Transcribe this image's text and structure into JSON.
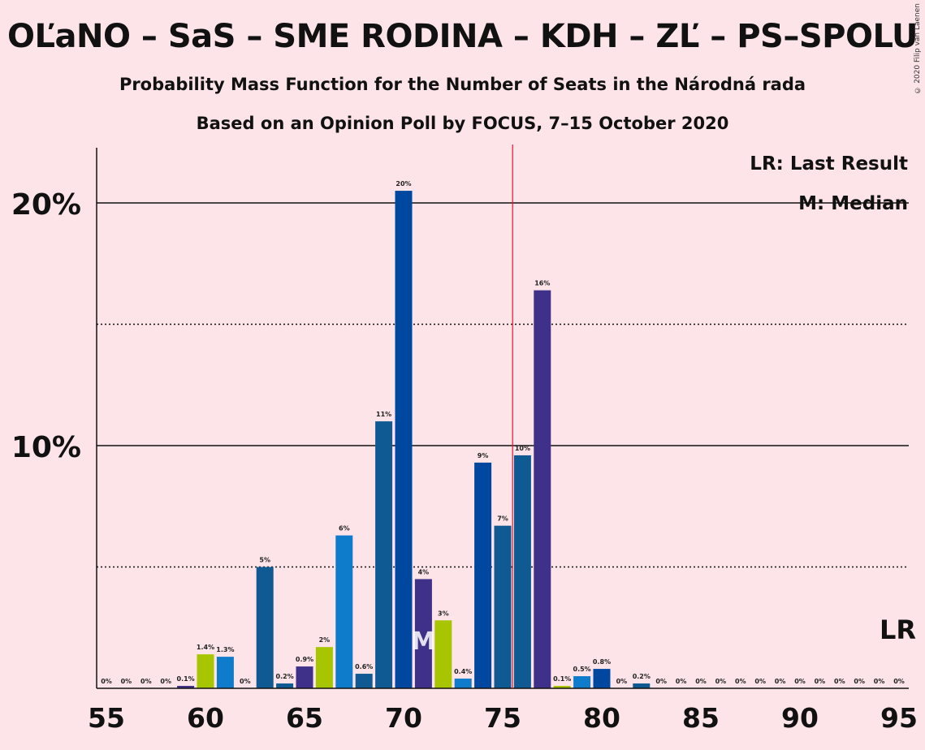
{
  "title": "OĽaNO – SaS – SME RODINA – KDH – ZĽ – PS–SPOLU",
  "subtitle": "Probability Mass Function for the Number of Seats in the Národná rada",
  "subtitle2": "Based on an Opinion Poll by FOCUS, 7–15 October 2020",
  "copyright": "© 2020 Filip van Laenen",
  "legend": {
    "lr": "LR: Last Result",
    "median": "M: Median"
  },
  "markers": {
    "lr_label": "LR",
    "median_label": "M",
    "median_seat": 71,
    "last_result_seat": 95,
    "majority_line_seat": 75.5
  },
  "colors": {
    "background": "#fde4e8",
    "majority_line": "#e8132c",
    "OLaNO": "#3f3189",
    "SaS": "#a7c500",
    "SME_RODINA": "#0f5a92",
    "KDH": "#00479f",
    "ZL": "#0f7ccb"
  },
  "chart_data": {
    "type": "bar",
    "xlim": [
      55,
      95
    ],
    "ylim": [
      0,
      22
    ],
    "x_ticks": [
      55,
      60,
      65,
      70,
      75,
      80,
      85,
      90,
      95
    ],
    "y_ticks": [
      {
        "value": 10,
        "label": "10%"
      },
      {
        "value": 20,
        "label": "20%"
      }
    ],
    "gridlines_dotted": [
      5,
      15
    ],
    "gridlines_solid": [
      10,
      20
    ],
    "bars": [
      {
        "x": 55,
        "value": 0,
        "label": "0%",
        "color": "#3f3189"
      },
      {
        "x": 56,
        "value": 0,
        "label": "0%",
        "color": "#3f3189"
      },
      {
        "x": 57,
        "value": 0,
        "label": "0%",
        "color": "#3f3189"
      },
      {
        "x": 58,
        "value": 0,
        "label": "0%",
        "color": "#3f3189"
      },
      {
        "x": 59,
        "value": 0.1,
        "label": "0.1%",
        "color": "#3f3189"
      },
      {
        "x": 60,
        "value": 1.4,
        "label": "1.4%",
        "color": "#a7c500"
      },
      {
        "x": 61,
        "value": 1.3,
        "label": "1.3%",
        "color": "#0f7ccb"
      },
      {
        "x": 62,
        "value": 0,
        "label": "0%",
        "color": "#3f3189"
      },
      {
        "x": 63,
        "value": 5.0,
        "label": "5%",
        "color": "#0f5a92"
      },
      {
        "x": 64,
        "value": 0.2,
        "label": "0.2%",
        "color": "#0f5a92"
      },
      {
        "x": 65,
        "value": 0.9,
        "label": "0.9%",
        "color": "#3f3189"
      },
      {
        "x": 66,
        "value": 1.7,
        "label": "2%",
        "color": "#a7c500"
      },
      {
        "x": 67,
        "value": 6.3,
        "label": "6%",
        "color": "#0f7ccb"
      },
      {
        "x": 68,
        "value": 0.6,
        "label": "0.6%",
        "color": "#0f5a92"
      },
      {
        "x": 69,
        "value": 11.0,
        "label": "11%",
        "color": "#0f5a92"
      },
      {
        "x": 70,
        "value": 20.5,
        "label": "20%",
        "color": "#00479f"
      },
      {
        "x": 71,
        "value": 4.5,
        "label": "4%",
        "color": "#3f3189"
      },
      {
        "x": 72,
        "value": 2.8,
        "label": "3%",
        "color": "#a7c500"
      },
      {
        "x": 73,
        "value": 0.4,
        "label": "0.4%",
        "color": "#0f7ccb"
      },
      {
        "x": 74,
        "value": 9.3,
        "label": "9%",
        "color": "#00479f"
      },
      {
        "x": 75,
        "value": 6.7,
        "label": "7%",
        "color": "#0f5a92"
      },
      {
        "x": 76,
        "value": 9.6,
        "label": "10%",
        "color": "#0f5a92"
      },
      {
        "x": 77,
        "value": 16.4,
        "label": "16%",
        "color": "#3f3189"
      },
      {
        "x": 78,
        "value": 0.1,
        "label": "0.1%",
        "color": "#a7c500"
      },
      {
        "x": 79,
        "value": 0.5,
        "label": "0.5%",
        "color": "#0f7ccb"
      },
      {
        "x": 80,
        "value": 0.8,
        "label": "0.8%",
        "color": "#00479f"
      },
      {
        "x": 81,
        "value": 0,
        "label": "0%",
        "color": "#0f5a92"
      },
      {
        "x": 82,
        "value": 0.2,
        "label": "0.2%",
        "color": "#0f5a92"
      },
      {
        "x": 83,
        "value": 0,
        "label": "0%",
        "color": "#3f3189"
      },
      {
        "x": 84,
        "value": 0,
        "label": "0%",
        "color": "#3f3189"
      },
      {
        "x": 85,
        "value": 0,
        "label": "0%",
        "color": "#3f3189"
      },
      {
        "x": 86,
        "value": 0,
        "label": "0%",
        "color": "#3f3189"
      },
      {
        "x": 87,
        "value": 0,
        "label": "0%",
        "color": "#3f3189"
      },
      {
        "x": 88,
        "value": 0,
        "label": "0%",
        "color": "#3f3189"
      },
      {
        "x": 89,
        "value": 0,
        "label": "0%",
        "color": "#3f3189"
      },
      {
        "x": 90,
        "value": 0,
        "label": "0%",
        "color": "#3f3189"
      },
      {
        "x": 91,
        "value": 0,
        "label": "0%",
        "color": "#3f3189"
      },
      {
        "x": 92,
        "value": 0,
        "label": "0%",
        "color": "#3f3189"
      },
      {
        "x": 93,
        "value": 0,
        "label": "0%",
        "color": "#3f3189"
      },
      {
        "x": 94,
        "value": 0,
        "label": "0%",
        "color": "#3f3189"
      },
      {
        "x": 95,
        "value": 0,
        "label": "0%",
        "color": "#3f3189"
      }
    ]
  }
}
